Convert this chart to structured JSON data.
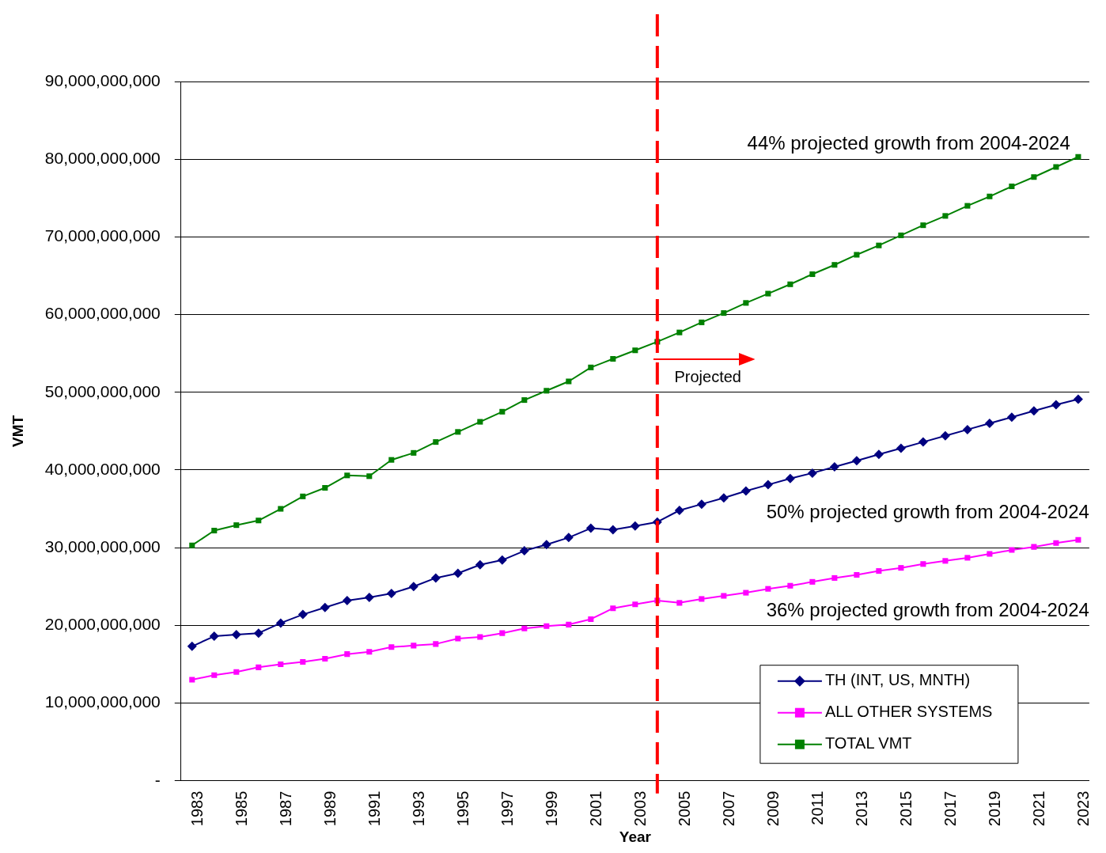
{
  "chart_data": {
    "type": "line",
    "xlabel": "Year",
    "ylabel": "VMT",
    "x": [
      1983,
      1984,
      1985,
      1986,
      1987,
      1988,
      1989,
      1990,
      1991,
      1992,
      1993,
      1994,
      1995,
      1996,
      1997,
      1998,
      1999,
      2000,
      2001,
      2002,
      2003,
      2004,
      2005,
      2006,
      2007,
      2008,
      2009,
      2010,
      2011,
      2012,
      2013,
      2014,
      2015,
      2016,
      2017,
      2018,
      2019,
      2020,
      2021,
      2022,
      2023
    ],
    "xlim": [
      1982.5,
      2023.5
    ],
    "xticks": [
      1983,
      1985,
      1987,
      1989,
      1991,
      1993,
      1995,
      1997,
      1999,
      2001,
      2003,
      2005,
      2007,
      2009,
      2011,
      2013,
      2015,
      2017,
      2019,
      2021,
      2023
    ],
    "ref_lines": [
      {
        "axis": "x",
        "value": 2004,
        "label": null,
        "color": "#ff0000",
        "line_style": "dashed"
      }
    ],
    "series": [
      {
        "name": "TH (INT, US, MNTH)",
        "color": "#000080",
        "marker": "diamond",
        "values": [
          17300000000,
          18600000000,
          18800000000,
          19000000000,
          20300000000,
          21400000000,
          22300000000,
          23200000000,
          23600000000,
          24100000000,
          25000000000,
          26100000000,
          26700000000,
          27800000000,
          28400000000,
          29600000000,
          30400000000,
          31300000000,
          32500000000,
          32300000000,
          32800000000,
          33300000000,
          34800000000,
          35600000000,
          36400000000,
          37300000000,
          38100000000,
          38900000000,
          39600000000,
          40400000000,
          41200000000,
          42000000000,
          42800000000,
          43600000000,
          44400000000,
          45200000000,
          46000000000,
          46800000000,
          47600000000,
          48400000000,
          49100000000
        ]
      },
      {
        "name": "ALL OTHER SYSTEMS",
        "color": "#ff00ff",
        "marker": "square",
        "values": [
          13000000000,
          13600000000,
          14000000000,
          14600000000,
          15000000000,
          15300000000,
          15700000000,
          16300000000,
          16600000000,
          17200000000,
          17400000000,
          17600000000,
          18300000000,
          18500000000,
          19000000000,
          19600000000,
          19900000000,
          20100000000,
          20800000000,
          22200000000,
          22700000000,
          23200000000,
          22900000000,
          23400000000,
          23800000000,
          24200000000,
          24700000000,
          25100000000,
          25600000000,
          26100000000,
          26500000000,
          27000000000,
          27400000000,
          27900000000,
          28300000000,
          28700000000,
          29200000000,
          29700000000,
          30100000000,
          30600000000,
          31000000000
        ]
      },
      {
        "name": "TOTAL VMT",
        "color": "#008000",
        "marker": "square",
        "values": [
          30300000000,
          32200000000,
          32900000000,
          33500000000,
          35000000000,
          36600000000,
          37700000000,
          39300000000,
          39200000000,
          41300000000,
          42200000000,
          43600000000,
          44900000000,
          46200000000,
          47500000000,
          49000000000,
          50200000000,
          51400000000,
          53200000000,
          54300000000,
          55400000000,
          56500000000,
          57700000000,
          59000000000,
          60200000000,
          61500000000,
          62700000000,
          63900000000,
          65200000000,
          66400000000,
          67700000000,
          68900000000,
          70200000000,
          71500000000,
          72700000000,
          74000000000,
          75200000000,
          76500000000,
          77700000000,
          79000000000,
          80300000000
        ]
      }
    ],
    "ylim": [
      0,
      90000000000
    ],
    "yticks": [
      {
        "value": 0,
        "label": "-"
      },
      {
        "value": 10000000000,
        "label": "10,000,000,000"
      },
      {
        "value": 20000000000,
        "label": "20,000,000,000"
      },
      {
        "value": 30000000000,
        "label": "30,000,000,000"
      },
      {
        "value": 40000000000,
        "label": "40,000,000,000"
      },
      {
        "value": 50000000000,
        "label": "50,000,000,000"
      },
      {
        "value": 60000000000,
        "label": "60,000,000,000"
      },
      {
        "value": 70000000000,
        "label": "70,000,000,000"
      },
      {
        "value": 80000000000,
        "label": "80,000,000,000"
      },
      {
        "value": 90000000000,
        "label": "90,000,000,000"
      }
    ],
    "grid": "y",
    "legend": "bottom right",
    "line_style": "solid",
    "annotations": [
      "44% projected growth from 2004-2024",
      "50% projected growth from 2004-2024",
      "36% projected growth from 2004-2024",
      "Projected"
    ]
  }
}
